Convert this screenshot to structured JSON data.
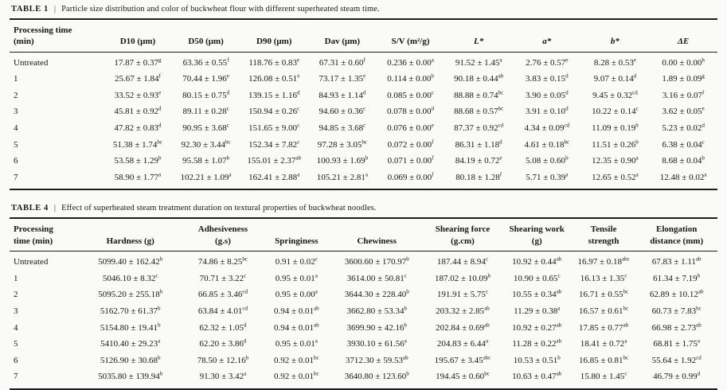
{
  "tables": [
    {
      "caption_label": "TABLE 1",
      "caption_sep": "|",
      "caption_text": "Particle size distribution and color of buckwheat flour with different superheated steam time.",
      "headers": [
        {
          "t": "Processing time\n(min)",
          "i": false
        },
        {
          "t": "D10 (μm)",
          "i": false
        },
        {
          "t": "D50 (μm)",
          "i": false
        },
        {
          "t": "D90 (μm)",
          "i": false
        },
        {
          "t": "Dav (μm)",
          "i": false
        },
        {
          "t": "S/V (m²/g)",
          "i": false
        },
        {
          "t": "L*",
          "i": true
        },
        {
          "t": "a*",
          "i": true
        },
        {
          "t": "b*",
          "i": true
        },
        {
          "t": "ΔE",
          "i": true
        }
      ],
      "rows": [
        [
          "Untreated",
          "17.87 ± 0.37^g",
          "63.36 ± 0.55^f",
          "118.76 ± 0.83^e",
          "67.31 ± 0.60^f",
          "0.236 ± 0.00^a",
          "91.52 ± 1.45^a",
          "2.76 ± 0.57^e",
          "8.28 ± 0.53^e",
          "0.00 ± 0.00^h"
        ],
        [
          "1",
          "25.67 ± 1.84^f",
          "70.44 ± 1.96^e",
          "126.08 ± 0.51^e",
          "73.17 ± 1.35^e",
          "0.114 ± 0.00^b",
          "90.18 ± 0.44^ab",
          "3.83 ± 0.15^d",
          "9.07 ± 0.14^d",
          "1.89 ± 0.09^g"
        ],
        [
          "2",
          "33.52 ± 0.93^e",
          "80.15 ± 0.75^d",
          "139.15 ± 1.16^d",
          "84.93 ± 1.14^d",
          "0.085 ± 0.00^c",
          "88.88 ± 0.74^bc",
          "3.90 ± 0.05^d",
          "9.45 ± 0.32^cd",
          "3.16 ± 0.07^f"
        ],
        [
          "3",
          "45.81 ± 0.92^d",
          "89.11 ± 0.28^c",
          "150.94 ± 0.26^c",
          "94.60 ± 0.36^c",
          "0.078 ± 0.00^d",
          "88.68 ± 0.57^bc",
          "3.91 ± 0.10^d",
          "10.22 ± 0.14^c",
          "3.62 ± 0.05^e"
        ],
        [
          "4",
          "47.82 ± 0.83^d",
          "90.95 ± 3.68^c",
          "151.65 ± 9.00^c",
          "94.85 ± 3.68^c",
          "0.076 ± 0.00^e",
          "87.37 ± 0.92^cd",
          "4.34 ± 0.09^cd",
          "11.09 ± 0.19^b",
          "5.23 ± 0.02^d"
        ],
        [
          "5",
          "51.38 ± 1.74^bc",
          "92.30 ± 3.44^bc",
          "152.34 ± 7.82^c",
          "97.28 ± 3.05^bc",
          "0.072 ± 0.00^f",
          "86.31 ± 1.18^d",
          "4.61 ± 0.18^bc",
          "11.51 ± 0.26^b",
          "6.38 ± 0.04^c"
        ],
        [
          "6",
          "53.58 ± 1.29^b",
          "95.58 ± 1.07^b",
          "155.01 ± 2.37^ab",
          "100.93 ± 1.69^b",
          "0.071 ± 0.00^f",
          "84.19 ± 0.72^e",
          "5.08 ± 0.60^b",
          "12.35 ± 0.90^a",
          "8.68 ± 0.04^b"
        ],
        [
          "7",
          "58.90 ± 1.77^a",
          "102.21 ± 1.09^a",
          "162.41 ± 2.88^a",
          "105.21 ± 2.81^a",
          "0.069 ± 0.00^f",
          "80.18 ± 1.28^f",
          "5.71 ± 0.39^a",
          "12.65 ± 0.52^a",
          "12.48 ± 0.02^a"
        ]
      ]
    },
    {
      "caption_label": "TABLE 4",
      "caption_sep": "|",
      "caption_text": "Effect of superheated steam treatment duration on textural properties of buckwheat noodles.",
      "headers": [
        {
          "t": "Processing\ntime (min)",
          "i": false
        },
        {
          "t": "Hardness (g)",
          "i": false
        },
        {
          "t": "Adhesiveness\n(g.s)",
          "i": false
        },
        {
          "t": "Springiness",
          "i": false
        },
        {
          "t": "Chewiness",
          "i": false
        },
        {
          "t": "Shearing force\n(g.cm)",
          "i": false
        },
        {
          "t": "Shearing work\n(g)",
          "i": false
        },
        {
          "t": "Tensile\nstrength",
          "i": false
        },
        {
          "t": "Elongation\ndistance (mm)",
          "i": false
        }
      ],
      "rows": [
        [
          "Untreated",
          "5099.40 ± 162.42^b",
          "74.86 ± 8.25^bc",
          "0.91 ± 0.02^c",
          "3600.60 ± 170.97^b",
          "187.44 ± 8.94^c",
          "10.92 ± 0.44^ab",
          "16.97 ± 0.18^abc",
          "67.83 ± 1.11^ab"
        ],
        [
          "1",
          "5046.10 ± 8.32^c",
          "70.71 ± 3.22^c",
          "0.95 ± 0.01^a",
          "3614.00 ± 50.81^c",
          "187.02 ± 10.09^b",
          "10.90 ± 0.65^c",
          "16.13 ± 1.35^c",
          "61.34 ± 7.19^b"
        ],
        [
          "2",
          "5095.20 ± 255.18^b",
          "66.85 ± 3.46^cd",
          "0.95 ± 0.00^a",
          "3644.30 ± 228.40^b",
          "191.91 ± 5.75^c",
          "10.55 ± 0.34^ab",
          "16.71 ± 0.55^bc",
          "62.89 ± 10.12^ab"
        ],
        [
          "3",
          "5162.70 ± 61.37^b",
          "63.84 ± 4.01^cd",
          "0.94 ± 0.01^ab",
          "3662.80 ± 53.34^b",
          "203.32 ± 2.85^ab",
          "11.29 ± 0.38^a",
          "16.57 ± 0.61^bc",
          "60.73 ± 7.83^bc"
        ],
        [
          "4",
          "5154.80 ± 19.41^b",
          "62.32 ± 1.05^d",
          "0.94 ± 0.01^ab",
          "3699.90 ± 42.16^b",
          "202.84 ± 0.69^ab",
          "10.92 ± 0.27^ab",
          "17.85 ± 0.77^ab",
          "66.98 ± 2.73^ab"
        ],
        [
          "5",
          "5410.40 ± 29.23^a",
          "62.20 ± 3.86^d",
          "0.95 ± 0.01^a",
          "3930.10 ± 61.56^a",
          "204.83 ± 6.44^a",
          "11.28 ± 0.22^ab",
          "18.41 ± 0.72^a",
          "68.81 ± 1.75^a"
        ],
        [
          "6",
          "5126.90 ± 30.68^b",
          "78.50 ± 12.16^b",
          "0.92 ± 0.01^bc",
          "3712.30 ± 59.53^ab",
          "195.67 ± 3.45^abc",
          "10.53 ± 0.51^b",
          "16.85 ± 0.81^bc",
          "55.64 ± 1.92^cd"
        ],
        [
          "7",
          "5035.80 ± 139.94^b",
          "91.30 ± 3.42^a",
          "0.92 ± 0.01^bc",
          "3640.80 ± 123.60^b",
          "194.45 ± 0.60^bc",
          "10.63 ± 0.47^ab",
          "15.80 ± 1.45^c",
          "46.79 ± 0.99^d"
        ]
      ]
    }
  ]
}
